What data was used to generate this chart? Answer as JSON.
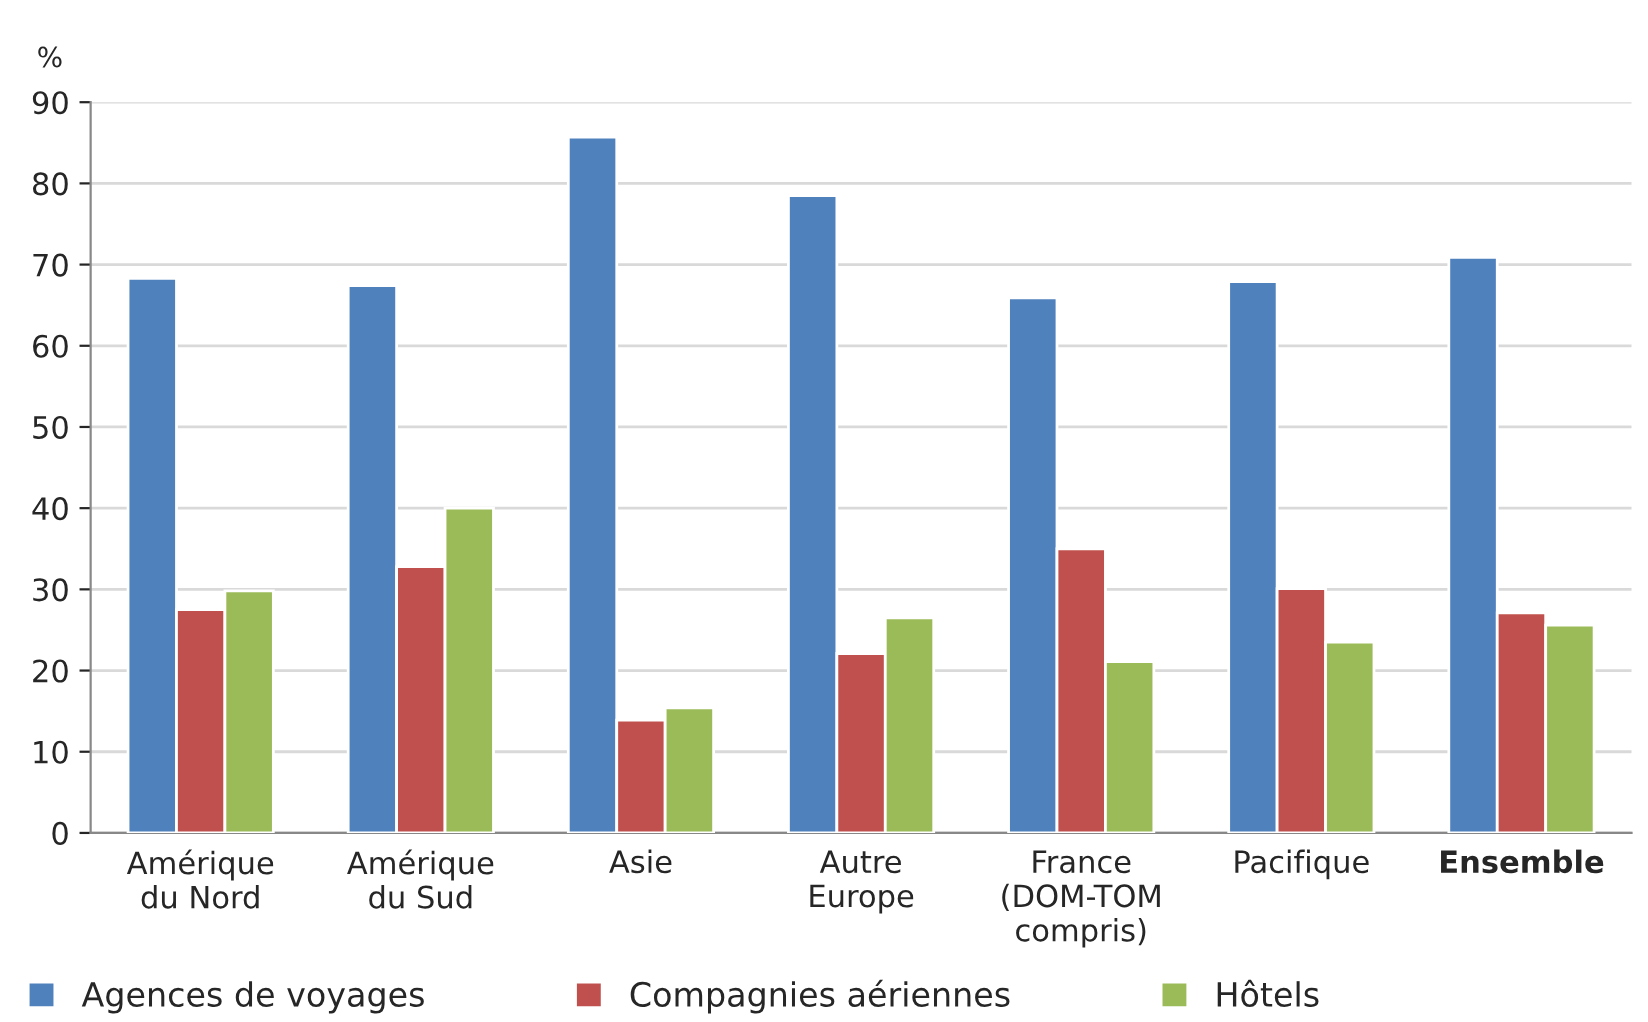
{
  "chart_data": {
    "type": "bar",
    "ylabel": "%",
    "categories": [
      "Amérique\ndu Nord",
      "Amérique\ndu Sud",
      "Asie",
      "Autre\nEurope",
      "France\n(DOM-TOM\ncompris)",
      "Pacifique",
      "Ensemble"
    ],
    "series": [
      {
        "name": "Agences de voyages",
        "color": "#4f81bd",
        "values": [
          68.3,
          67.4,
          85.7,
          78.5,
          65.9,
          67.9,
          70.9
        ]
      },
      {
        "name": "Compagnies aériennes",
        "color": "#c0504d",
        "values": [
          27.5,
          32.8,
          13.9,
          22.1,
          35.0,
          30.1,
          27.1
        ]
      },
      {
        "name": "Hôtels",
        "color": "#9bbb59",
        "values": [
          29.8,
          40.0,
          15.4,
          26.5,
          21.1,
          23.5,
          25.6
        ]
      }
    ],
    "ylim": [
      0,
      90
    ],
    "yticks": [
      0,
      10,
      20,
      30,
      40,
      50,
      60,
      70,
      80,
      90
    ],
    "grid": "y",
    "legend": "bottom"
  }
}
